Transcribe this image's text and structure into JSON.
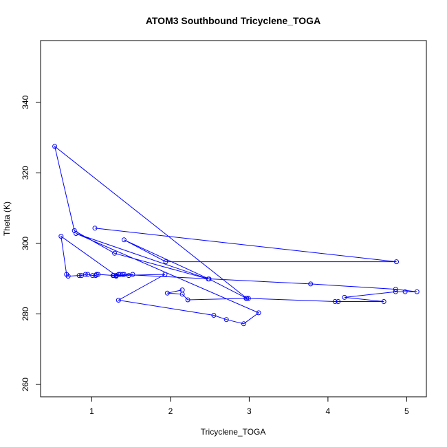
{
  "chart_data": {
    "type": "line",
    "title": "ATOM3 Southbound Tricyclene_TOGA",
    "xlabel": "Tricyclene_TOGA",
    "ylabel": "Theta (K)",
    "xlim": [
      0.35,
      5.25
    ],
    "ylim": [
      256.5,
      357.5
    ],
    "xticks": [
      1,
      2,
      3,
      4,
      5
    ],
    "yticks": [
      260,
      280,
      300,
      320,
      340
    ],
    "grid": false,
    "legend": "none",
    "color": "#0000ff",
    "series": [
      {
        "x": [
          1.04,
          4.87,
          1.94,
          1.41,
          2.49,
          2.97,
          0.53,
          0.78,
          1.29,
          2.48,
          0.8,
          3.12,
          2.93,
          2.71,
          2.55,
          1.34,
          1.93,
          1.31,
          0.61,
          0.68,
          0.7,
          0.84,
          0.87,
          0.92,
          0.95,
          1.01,
          1.05,
          1.06,
          1.08,
          1.28,
          1.34,
          1.39,
          1.41,
          1.47,
          1.52,
          1.31,
          1.27,
          1.36,
          3.78,
          4.86,
          5.13,
          4.98,
          4.86,
          4.21,
          4.71,
          4.13,
          4.09,
          2.99,
          2.96,
          2.22,
          2.15,
          1.96,
          2.15
        ],
        "y": [
          304.3,
          294.8,
          294.8,
          301.0,
          289.9,
          284.4,
          327.5,
          303.6,
          297.2,
          289.9,
          302.8,
          280.3,
          277.2,
          278.4,
          279.6,
          283.9,
          291.2,
          290.9,
          302.0,
          291.2,
          290.7,
          290.9,
          290.9,
          291.2,
          291.2,
          290.9,
          290.9,
          291.2,
          291.2,
          290.9,
          291.2,
          291.2,
          291.2,
          290.9,
          291.2,
          290.7,
          290.9,
          291.2,
          288.5,
          287.0,
          286.3,
          286.3,
          286.3,
          284.7,
          283.5,
          283.5,
          283.5,
          284.4,
          284.4,
          284.0,
          285.6,
          285.9,
          286.8
        ]
      }
    ]
  }
}
